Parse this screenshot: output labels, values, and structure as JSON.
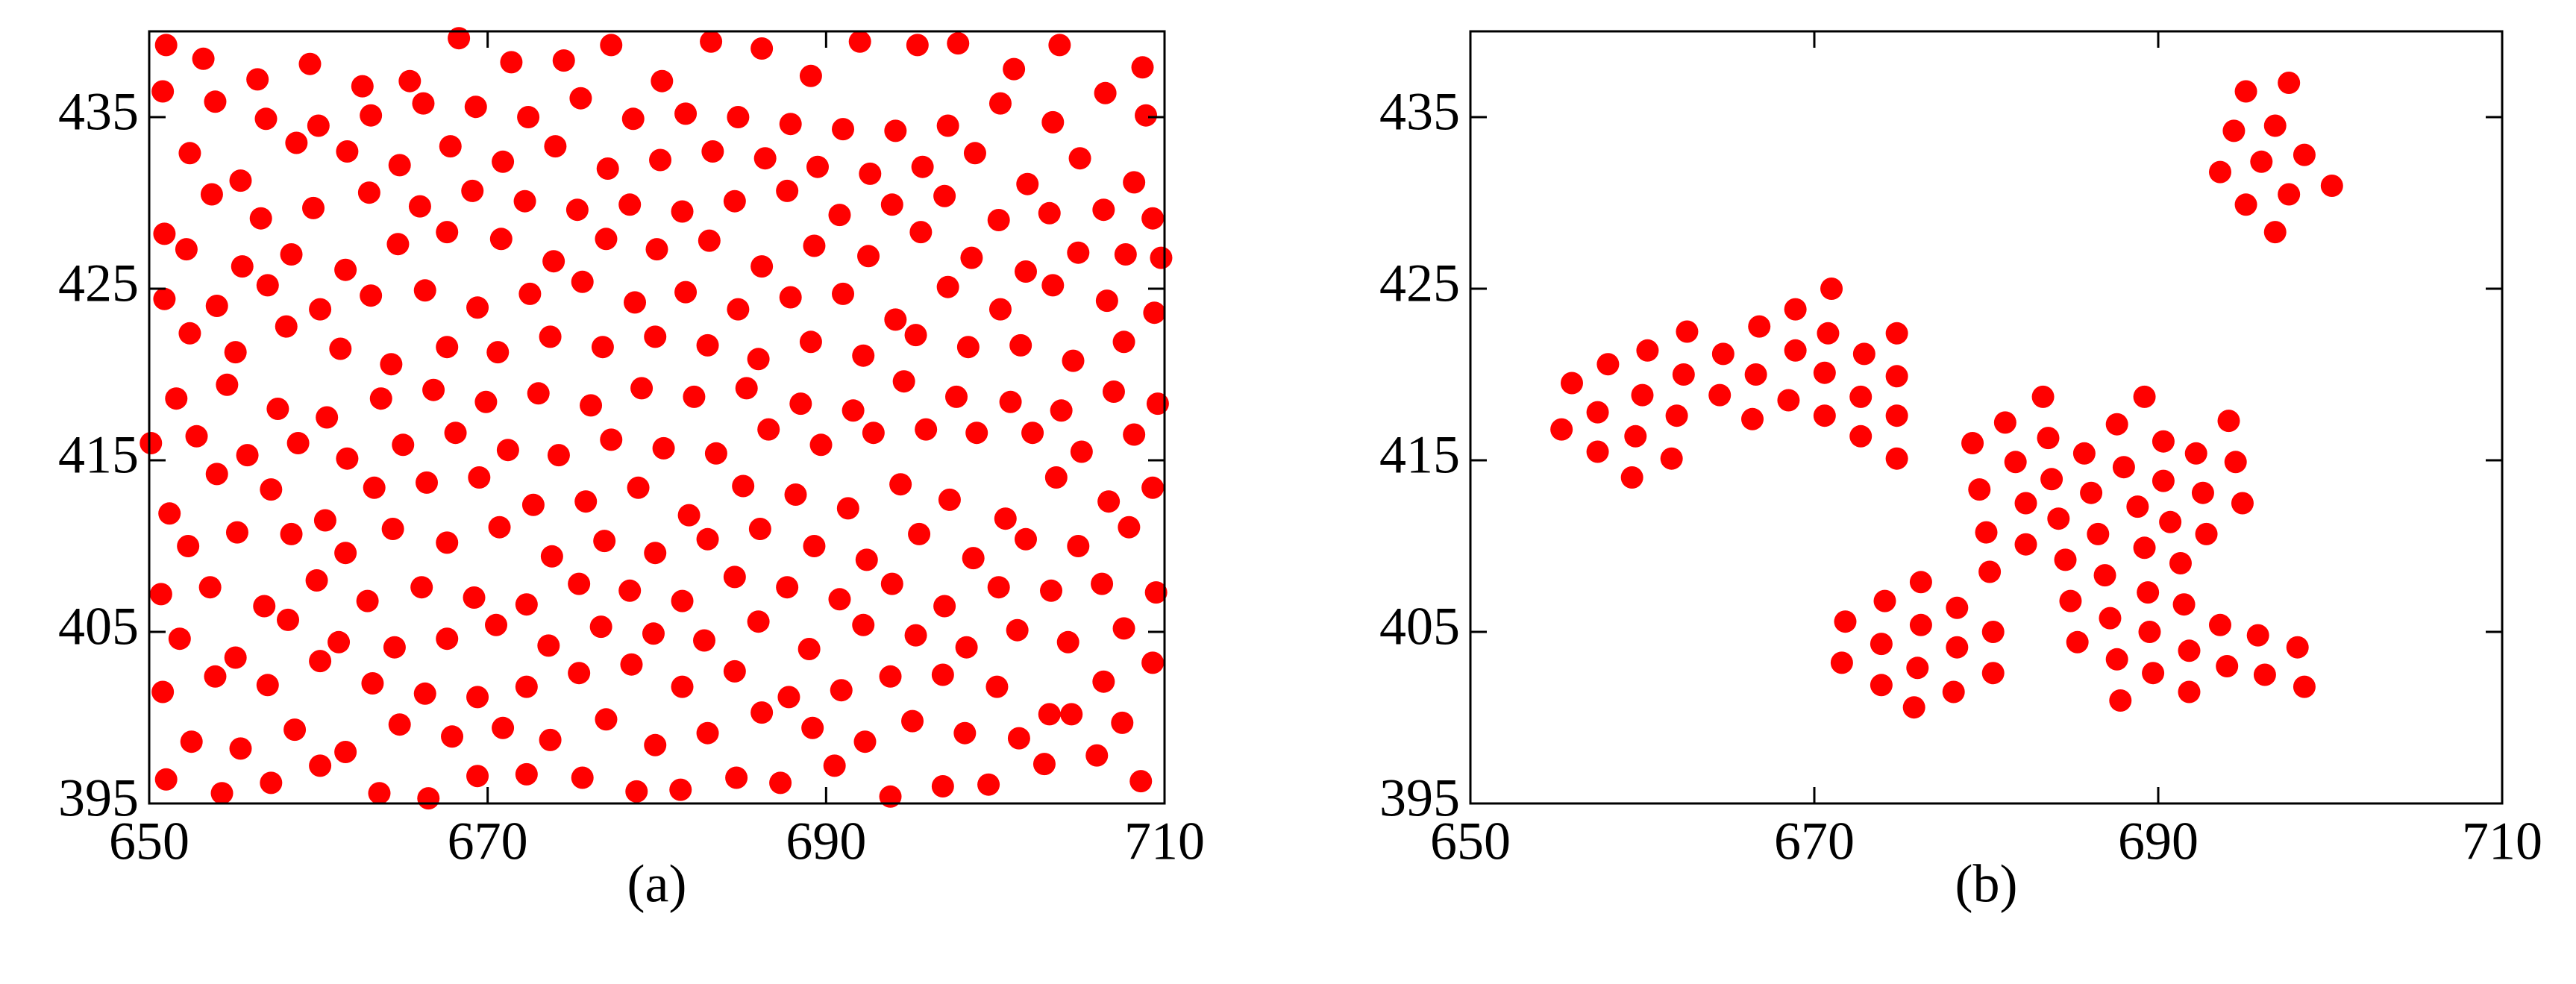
{
  "chart_data": [
    {
      "type": "scatter",
      "label": "(a)",
      "xlim": [
        650,
        710
      ],
      "ylim": [
        395,
        440
      ],
      "xticks": [
        650,
        670,
        690,
        710
      ],
      "yticks": [
        395,
        405,
        415,
        425,
        435
      ],
      "series": [
        {
          "color": "#ff0000",
          "x": [
            651.0,
            654.3,
            657.2,
            660.1,
            663.6,
            666.5,
            669.4,
            672.3,
            675.6,
            678.8,
            681.4,
            684.7,
            687.3,
            690.5,
            693.8,
            696.9,
            699.6,
            702.9,
            706.0,
            708.6,
            652.5,
            655.4,
            658.6,
            661.6,
            664.8,
            667.9,
            670.9,
            673.7,
            677.0,
            679.9,
            683.0,
            686.2,
            689.2,
            692.3,
            695.1,
            698.2,
            701.4,
            704.5,
            707.5,
            650.8,
            653.9,
            657.0,
            660.1,
            663.2,
            666.3,
            669.4,
            672.3,
            675.4,
            678.5,
            681.5,
            684.6,
            687.8,
            690.9,
            693.8,
            696.9,
            700.1,
            703.2,
            706.4,
            709.3,
            651.8,
            655.1,
            658.2,
            661.2,
            664.5,
            667.6,
            670.5,
            673.6,
            676.7,
            679.8,
            682.8,
            686.0,
            689.0,
            692.2,
            695.3,
            698.3,
            701.3,
            704.3,
            707.6,
            650.7,
            653.6,
            656.8,
            659.9,
            662.9,
            666.1,
            669.2,
            672.3,
            675.4,
            678.4,
            681.5,
            684.6,
            687.7,
            690.8,
            693.9,
            697.0,
            700.2,
            703.3,
            706.3,
            709.5,
            652.3,
            655.2,
            658.4,
            661.6,
            664.4,
            667.6,
            670.7,
            673.8,
            676.9,
            679.9,
            683.0,
            686.1,
            689.3,
            692.4,
            695.5,
            698.7,
            701.8,
            704.9,
            707.9,
            651.2,
            654.0,
            657.2,
            660.4,
            663.3,
            666.4,
            669.5,
            672.7,
            675.8,
            678.9,
            681.9,
            685.1,
            688.2,
            691.3,
            694.4,
            697.3,
            700.6,
            703.6,
            706.7,
            709.3,
            650.1,
            652.8,
            655.8,
            658.8,
            661.7,
            665.0,
            668.1,
            671.2,
            674.2,
            677.3,
            680.4,
            683.5,
            686.6,
            689.7,
            692.8,
            695.9,
            698.9,
            702.2,
            705.1,
            708.2,
            651.6,
            654.6,
            657.6,
            660.5,
            663.7,
            666.8,
            669.9,
            673.0,
            676.1,
            679.1,
            682.2,
            685.3,
            688.5,
            691.6,
            694.6,
            697.7,
            700.9,
            703.9,
            707.0,
            709.6,
            652.4,
            655.1,
            658.1,
            661.3,
            664.3,
            667.6,
            670.6,
            673.7,
            676.8,
            679.9,
            683.0,
            686.0,
            689.1,
            692.2,
            695.3,
            698.4,
            701.5,
            704.6,
            707.6,
            650.9,
            654.0,
            657.0,
            660.1,
            663.1,
            666.3,
            669.4,
            672.5,
            675.6,
            678.7,
            681.7,
            684.8,
            687.9,
            691.0,
            694.1,
            697.2,
            700.3,
            703.4,
            706.6,
            709.4,
            652.2,
            655.5,
            658.4,
            661.6,
            664.7,
            667.6,
            670.8,
            673.9,
            677.0,
            680.0,
            683.1,
            686.2,
            689.3,
            692.5,
            695.6,
            698.6,
            701.8,
            704.9,
            707.7,
            709.8,
            650.9,
            653.7,
            656.6,
            659.7,
            663.0,
            666.0,
            669.1,
            672.2,
            675.3,
            678.4,
            681.5,
            684.6,
            687.7,
            690.8,
            693.9,
            697.0,
            700.2,
            703.2,
            706.4,
            709.3,
            652.4,
            655.4,
            658.7,
            661.7,
            664.8,
            667.8,
            670.9,
            674.0,
            677.1,
            680.2,
            683.3,
            686.4,
            689.5,
            692.6,
            695.7,
            698.8,
            701.9,
            705.0,
            708.2,
            650.8,
            653.9,
            656.9,
            660.0,
            663.1,
            666.2,
            669.3,
            672.4,
            675.5,
            678.6,
            681.7,
            684.8,
            687.9,
            691.0,
            694.1,
            697.2,
            700.3,
            703.4,
            706.5,
            708.9,
            651.0,
            653.2,
            656.4,
            659.5,
            662.6,
            665.4,
            668.3,
            671.4,
            674.5,
            677.3,
            680.3,
            683.2,
            686.2,
            689.1,
            692.0,
            695.4,
            697.8,
            701.1,
            703.8,
            708.7
          ],
          "values": [
            396.4,
            395.6,
            396.2,
            397.2,
            395.6,
            395.3,
            396.6,
            396.7,
            396.5,
            395.7,
            395.8,
            396.5,
            396.2,
            397.2,
            395.4,
            396.0,
            396.1,
            397.3,
            397.8,
            396.3,
            398.6,
            398.2,
            399.3,
            398.0,
            399.6,
            398.9,
            399.4,
            398.7,
            399.9,
            398.4,
            399.1,
            400.3,
            399.4,
            398.6,
            399.8,
            399.1,
            398.8,
            400.2,
            399.7,
            401.5,
            402.4,
            401.9,
            403.3,
            402.0,
            401.4,
            401.2,
            401.8,
            402.6,
            403.1,
            401.8,
            402.7,
            401.2,
            401.6,
            402.4,
            402.5,
            401.8,
            400.2,
            402.1,
            403.2,
            404.6,
            403.5,
            405.7,
            404.4,
            404.1,
            404.6,
            405.4,
            404.2,
            405.3,
            404.9,
            404.5,
            405.6,
            404.0,
            405.4,
            404.8,
            404.1,
            405.1,
            404.4,
            405.2,
            407.2,
            407.6,
            406.5,
            408.0,
            406.8,
            407.6,
            407.0,
            406.6,
            407.8,
            407.4,
            406.8,
            408.2,
            407.6,
            406.9,
            407.8,
            406.5,
            407.6,
            407.4,
            407.8,
            407.3,
            410.0,
            410.8,
            410.7,
            409.6,
            411.0,
            410.2,
            411.1,
            409.4,
            410.3,
            409.6,
            410.4,
            411.0,
            410.0,
            409.2,
            410.7,
            409.3,
            410.4,
            410.0,
            411.1,
            411.9,
            414.2,
            413.3,
            411.5,
            413.4,
            413.7,
            414.0,
            412.4,
            412.6,
            413.4,
            411.8,
            413.5,
            413.0,
            412.2,
            413.6,
            412.7,
            411.6,
            414.0,
            412.6,
            413.4,
            416.0,
            416.4,
            415.3,
            416.0,
            415.1,
            415.9,
            416.6,
            415.6,
            415.3,
            416.2,
            415.7,
            415.4,
            416.8,
            415.9,
            416.6,
            416.8,
            416.6,
            416.6,
            415.5,
            416.5,
            418.6,
            419.4,
            418.0,
            417.5,
            418.6,
            419.1,
            418.4,
            418.9,
            418.2,
            419.2,
            418.7,
            419.2,
            418.3,
            417.9,
            419.6,
            418.7,
            418.4,
            417.9,
            419.0,
            418.3,
            422.4,
            421.3,
            422.8,
            421.5,
            420.6,
            421.6,
            421.3,
            422.2,
            421.6,
            422.2,
            421.7,
            420.9,
            421.9,
            421.1,
            422.3,
            421.6,
            421.7,
            420.8,
            421.9,
            424.4,
            424.0,
            425.2,
            423.8,
            424.6,
            424.9,
            423.9,
            424.7,
            425.4,
            424.2,
            424.8,
            423.8,
            424.5,
            424.7,
            423.2,
            425.1,
            423.8,
            425.2,
            424.3,
            423.6,
            427.3,
            426.3,
            427.0,
            426.1,
            427.6,
            428.3,
            427.9,
            426.6,
            427.9,
            427.3,
            427.8,
            426.3,
            427.5,
            426.9,
            428.3,
            426.8,
            426.0,
            427.1,
            427.0,
            426.8,
            428.2,
            430.5,
            429.1,
            429.7,
            430.6,
            429.8,
            430.7,
            430.1,
            429.6,
            429.9,
            429.5,
            430.1,
            430.7,
            429.3,
            429.9,
            430.4,
            429.0,
            429.4,
            429.6,
            429.1,
            432.9,
            431.3,
            433.5,
            433.0,
            432.2,
            433.3,
            432.4,
            433.3,
            432.0,
            432.5,
            433.0,
            432.6,
            432.1,
            431.7,
            432.1,
            432.9,
            431.1,
            432.6,
            431.2,
            436.5,
            435.9,
            434.9,
            434.5,
            435.1,
            435.8,
            435.6,
            435.0,
            436.1,
            434.9,
            435.2,
            435.0,
            434.6,
            434.3,
            434.2,
            434.5,
            435.8,
            434.7,
            436.4,
            435.1,
            439.2,
            438.4,
            437.2,
            438.1,
            436.8,
            437.1,
            439.6,
            438.2,
            438.3,
            439.2,
            437.1,
            439.4,
            439.0,
            437.4,
            439.4,
            439.2,
            439.3,
            437.8,
            439.2,
            437.9
          ]
        }
      ]
    },
    {
      "type": "scatter",
      "label": "(b)",
      "xlim": [
        650,
        710
      ],
      "ylim": [
        395,
        440
      ],
      "xticks": [
        650,
        670,
        690,
        710
      ],
      "yticks": [
        395,
        405,
        415,
        425,
        435
      ],
      "series": [
        {
          "color": "#ff0000",
          "x": [
            695.1,
            697.6,
            694.4,
            696.8,
            693.6,
            696.0,
            698.5,
            695.1,
            697.6,
            700.1,
            696.8,
            655.3,
            655.9,
            657.4,
            658.0,
            657.4,
            659.6,
            660.0,
            660.3,
            659.4,
            661.7,
            662.0,
            662.4,
            662.6,
            664.5,
            664.7,
            666.4,
            666.6,
            666.8,
            668.5,
            668.9,
            668.9,
            670.6,
            670.6,
            670.8,
            671.0,
            672.7,
            672.7,
            672.9,
            674.8,
            674.8,
            674.8,
            674.8,
            671.8,
            671.6,
            674.1,
            673.9,
            673.9,
            676.2,
            676.2,
            676.0,
            675.8,
            678.3,
            678.3,
            678.1,
            680.4,
            680.4,
            679.2,
            679.6,
            680.0,
            680.2,
            681.1,
            681.7,
            682.3,
            682.3,
            683.3,
            683.6,
            683.8,
            684.2,
            684.6,
            684.9,
            685.3,
            685.7,
            686.1,
            686.5,
            686.9,
            687.2,
            687.6,
            687.8,
            687.6,
            688.0,
            688.8,
            689.2,
            689.4,
            689.5,
            689.7,
            689.2,
            690.3,
            690.3,
            690.7,
            691.3,
            691.5,
            691.8,
            691.8,
            692.2,
            692.6,
            692.8,
            694.1,
            694.5,
            694.9,
            693.6,
            694.0,
            695.8,
            696.2,
            698.1,
            698.5
          ],
          "values": [
            436.5,
            437.0,
            434.2,
            434.5,
            431.8,
            432.4,
            432.8,
            429.9,
            430.5,
            431.0,
            428.3,
            416.8,
            419.5,
            417.8,
            420.6,
            415.5,
            416.4,
            418.8,
            421.4,
            414.0,
            415.1,
            417.6,
            420.0,
            422.5,
            418.8,
            421.2,
            417.4,
            420.0,
            422.8,
            418.5,
            421.4,
            423.8,
            417.6,
            420.1,
            422.4,
            425.0,
            416.4,
            418.7,
            421.2,
            415.1,
            417.6,
            419.9,
            422.4,
            405.6,
            403.2,
            406.8,
            404.3,
            401.9,
            405.4,
            407.9,
            402.9,
            400.6,
            406.4,
            404.1,
            401.5,
            405.0,
            402.6,
            416.0,
            413.3,
            410.8,
            408.5,
            417.2,
            414.9,
            412.5,
            410.1,
            418.7,
            416.3,
            413.9,
            411.6,
            409.2,
            406.8,
            404.4,
            415.4,
            413.1,
            410.7,
            408.3,
            405.8,
            403.4,
            401.0,
            417.1,
            414.6,
            412.3,
            409.9,
            407.3,
            405.0,
            402.6,
            418.7,
            416.1,
            413.8,
            411.4,
            409.0,
            406.6,
            403.9,
            401.5,
            415.4,
            413.1,
            410.7,
            417.3,
            414.9,
            412.5,
            405.4,
            403.0,
            404.8,
            402.5,
            404.1,
            401.8
          ]
        }
      ]
    }
  ]
}
